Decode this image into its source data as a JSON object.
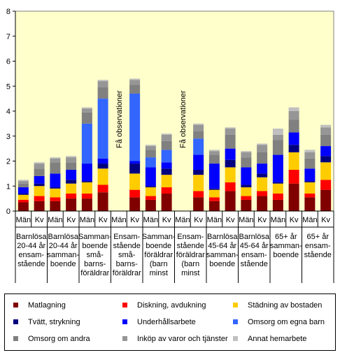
{
  "chart_data": {
    "type": "bar",
    "stacked": true,
    "ylim": [
      0,
      8
    ],
    "yticks": [
      0,
      1,
      2,
      3,
      4,
      5,
      6,
      7,
      8
    ],
    "grid": false,
    "plot_background": "#FFFFCC",
    "groups": [
      {
        "label_lines": [
          "Barnlösa",
          "20-44 år",
          "ensam-",
          "stående"
        ],
        "bars": [
          "Män",
          "Kv"
        ]
      },
      {
        "label_lines": [
          "Barnlösa",
          "20-44 år",
          "samman-",
          "boende"
        ],
        "bars": [
          "Män",
          "Kv"
        ]
      },
      {
        "label_lines": [
          "Samman-",
          "boende",
          "små-",
          "barns-",
          "föräldrar"
        ],
        "bars": [
          "Män",
          "Kv"
        ]
      },
      {
        "label_lines": [
          "Ensam-",
          "stående",
          "små-",
          "barns-",
          "föräldrar"
        ],
        "bars": [
          "Män",
          "Kv"
        ]
      },
      {
        "label_lines": [
          "Samman-",
          "boende",
          "föräldrar",
          "(barn",
          "minst"
        ],
        "bars": [
          "Män",
          "Kv"
        ]
      },
      {
        "label_lines": [
          "Ensam-",
          "stående",
          "föräldrar",
          "(barn",
          "minst"
        ],
        "bars": [
          "Män",
          "Kv"
        ]
      },
      {
        "label_lines": [
          "Barnlösa",
          "45-64 år",
          "samman-",
          "boende"
        ],
        "bars": [
          "Män",
          "Kv"
        ]
      },
      {
        "label_lines": [
          "Barnlösa",
          "45-64 år",
          "ensam-",
          "stående"
        ],
        "bars": [
          "Män",
          "Kv"
        ]
      },
      {
        "label_lines": [
          "65+ år",
          "samman-",
          "boende"
        ],
        "bars": [
          "Män",
          "Kv"
        ]
      },
      {
        "label_lines": [
          "65+ år",
          "ensam-",
          "stående"
        ],
        "bars": [
          "Män",
          "Kv"
        ]
      }
    ],
    "annotations": [
      {
        "text": "Få observationer",
        "group": 3,
        "bar": 0
      },
      {
        "text": "Få observationer",
        "group": 5,
        "bar": 0
      }
    ],
    "series": [
      {
        "name": "Matlagning",
        "color": "#800000",
        "values": [
          0.35,
          0.4,
          0.4,
          0.5,
          0.5,
          0.75,
          null,
          0.55,
          0.45,
          0.7,
          null,
          0.55,
          0.4,
          0.8,
          0.45,
          0.6,
          0.45,
          1.1,
          0.55,
          0.85
        ]
      },
      {
        "name": "Diskning, avdukning",
        "color": "#FF0000",
        "values": [
          0.1,
          0.2,
          0.15,
          0.2,
          0.2,
          0.3,
          null,
          0.3,
          0.15,
          0.25,
          null,
          0.25,
          0.15,
          0.35,
          0.15,
          0.2,
          0.25,
          0.55,
          0.15,
          0.4
        ]
      },
      {
        "name": "Städning av bostaden",
        "color": "#FFCC00",
        "values": [
          0.2,
          0.4,
          0.35,
          0.4,
          0.45,
          0.65,
          null,
          0.65,
          0.35,
          0.5,
          null,
          0.65,
          0.3,
          0.6,
          0.35,
          0.55,
          0.4,
          0.7,
          0.45,
          0.7
        ]
      },
      {
        "name": "Tvätt, strykning",
        "color": "#000080",
        "values": [
          0.05,
          0.1,
          0.05,
          0.15,
          0.05,
          0.2,
          null,
          0.4,
          0.05,
          0.25,
          null,
          0.2,
          0.05,
          0.3,
          0.1,
          0.15,
          0.05,
          0.3,
          0.05,
          0.25
        ]
      },
      {
        "name": "Underhållsarbete",
        "color": "#0000FF",
        "values": [
          0.25,
          0.3,
          0.55,
          0.4,
          0.7,
          0.2,
          null,
          0.1,
          0.75,
          0.25,
          null,
          0.6,
          1.0,
          0.45,
          0.7,
          0.4,
          1.1,
          0.5,
          0.5,
          0.4
        ]
      },
      {
        "name": "Omsorg om egna barn",
        "color": "#3366FF",
        "values": [
          0,
          0,
          0,
          0,
          1.6,
          2.4,
          null,
          2.7,
          0.4,
          0.5,
          null,
          0.65,
          0,
          0,
          0,
          0,
          0,
          0,
          0,
          0
        ]
      },
      {
        "name": "Omsorg om andra",
        "color": "#808080",
        "values": [
          0.15,
          0.3,
          0.45,
          0.3,
          0.45,
          0.45,
          null,
          0.35,
          0.3,
          0.35,
          null,
          0.3,
          0.35,
          0.55,
          0.4,
          0.45,
          0.6,
          0.5,
          0.4,
          0.45
        ]
      },
      {
        "name": "Inköp av varor och tjänster",
        "color": "#969696",
        "values": [
          0.1,
          0.2,
          0.15,
          0.2,
          0.15,
          0.25,
          null,
          0.2,
          0.15,
          0.25,
          null,
          0.25,
          0.15,
          0.25,
          0.2,
          0.3,
          0.2,
          0.35,
          0.25,
          0.3
        ]
      },
      {
        "name": "Annat hemarbete",
        "color": "#C0C0C0",
        "values": [
          0.05,
          0.05,
          0.05,
          0.05,
          0.05,
          0.05,
          null,
          0.05,
          0.05,
          0.05,
          null,
          0.05,
          0.05,
          0.05,
          0.05,
          0.05,
          0.25,
          0.15,
          0.1,
          0.1
        ]
      }
    ]
  }
}
